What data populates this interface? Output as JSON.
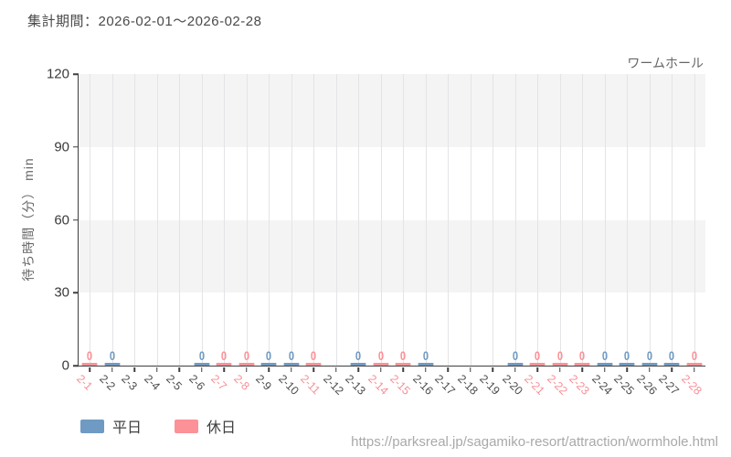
{
  "header": {
    "report_period": "集計期間：2026-02-01～2026-02-28",
    "attraction_name": "ワームホール"
  },
  "chart_data": {
    "type": "bar",
    "title": "ワームホール",
    "xlabel": "",
    "ylabel": "待ち時間（分） min",
    "ylim": [
      0,
      120
    ],
    "yticks": [
      0,
      30,
      60,
      90,
      120
    ],
    "grid": "horizontal alternating bands (gray/white per 30) + vertical gridline per date",
    "legend_position": "bottom-left",
    "categories": [
      "2-1",
      "2-2",
      "2-3",
      "2-4",
      "2-5",
      "2-6",
      "2-7",
      "2-8",
      "2-9",
      "2-10",
      "2-11",
      "2-12",
      "2-13",
      "2-14",
      "2-15",
      "2-16",
      "2-17",
      "2-18",
      "2-19",
      "2-20",
      "2-21",
      "2-22",
      "2-23",
      "2-24",
      "2-25",
      "2-26",
      "2-27",
      "2-28"
    ],
    "day_types": [
      "holiday",
      "weekday",
      "weekday",
      "weekday",
      "weekday",
      "weekday",
      "holiday",
      "holiday",
      "weekday",
      "weekday",
      "holiday",
      "weekday",
      "weekday",
      "holiday",
      "holiday",
      "weekday",
      "weekday",
      "weekday",
      "weekday",
      "weekday",
      "holiday",
      "holiday",
      "holiday",
      "weekday",
      "weekday",
      "weekday",
      "weekday",
      "holiday"
    ],
    "series": [
      {
        "name": "平日",
        "color": "#6f9ac3",
        "values": [
          null,
          0,
          null,
          null,
          null,
          0,
          null,
          null,
          0,
          0,
          null,
          null,
          0,
          null,
          null,
          0,
          null,
          null,
          null,
          0,
          null,
          null,
          null,
          0,
          0,
          0,
          0,
          null
        ]
      },
      {
        "name": "休日",
        "color": "#fc9197",
        "values": [
          0,
          null,
          null,
          null,
          null,
          null,
          0,
          0,
          null,
          null,
          0,
          null,
          null,
          0,
          0,
          null,
          null,
          null,
          null,
          null,
          0,
          0,
          0,
          null,
          null,
          null,
          null,
          0
        ]
      }
    ],
    "value_label_format": "0 shown above each bar",
    "band_colors": {
      "shaded": "#f4f4f5",
      "plain": "#ffffff"
    },
    "x_label_colors": {
      "weekday": "#4d4d4d",
      "holiday": "#f88f96"
    }
  },
  "legend": [
    {
      "label": "平日",
      "color": "#6f9ac3"
    },
    {
      "label": "休日",
      "color": "#fc9197"
    }
  ],
  "footer": {
    "source_url": "https://parksreal.jp/sagamiko-resort/attraction/wormhole.html"
  }
}
